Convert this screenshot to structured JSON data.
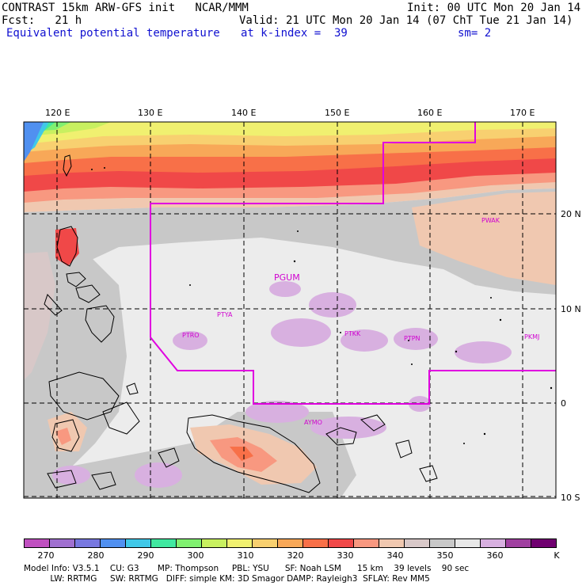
{
  "header": {
    "line1_left": "CONTRAST 15km ARW-GFS init   NCAR/MMM",
    "line1_right": "Init: 00 UTC Mon 20 Jan 14",
    "line2_left": "Fcst:   21 h",
    "line2_right": "Valid: 21 UTC Mon 20 Jan 14 (07 ChT Tue 21 Jan 14)",
    "line3_left": "Equivalent potential temperature",
    "line3_mid": "at k-index =  39",
    "line3_right": "sm= 2"
  },
  "map": {
    "lon_labels": [
      "120 E",
      "130 E",
      "140 E",
      "150 E",
      "160 E",
      "170 E"
    ],
    "lat_labels": [
      "20 N",
      "10 N",
      "0",
      "10 S"
    ],
    "stations": [
      "PGUM",
      "PTYA",
      "PTRO",
      "PTKK",
      "PTPN",
      "PKMJ",
      "PWAK",
      "AYMO"
    ]
  },
  "colorbar": {
    "colors": [
      "#c050c0",
      "#a070d0",
      "#7878e0",
      "#5090f0",
      "#40c8e8",
      "#40e8a0",
      "#80f070",
      "#c8f060",
      "#f0f070",
      "#f8d070",
      "#f8a858",
      "#f87048",
      "#f04848",
      "#f89880",
      "#f0c8b0",
      "#d8c8c8",
      "#c8c8c8",
      "#e8e8e8",
      "#d8b0e0",
      "#a040a0",
      "#700070"
    ],
    "labels": [
      "270",
      "280",
      "290",
      "300",
      "310",
      "320",
      "330",
      "340",
      "350",
      "360",
      "K"
    ]
  },
  "footer": {
    "line1": "Model Info: V3.5.1    CU: G3       MP: Thompson     PBL: YSU      SF: Noah LSM      15 km    39 levels    90 sec",
    "line2": "          LW: RRTMG     SW: RRTMG   DIFF: simple KM: 3D Smagor DAMP: Rayleigh3  SFLAY: Rev MM5"
  }
}
